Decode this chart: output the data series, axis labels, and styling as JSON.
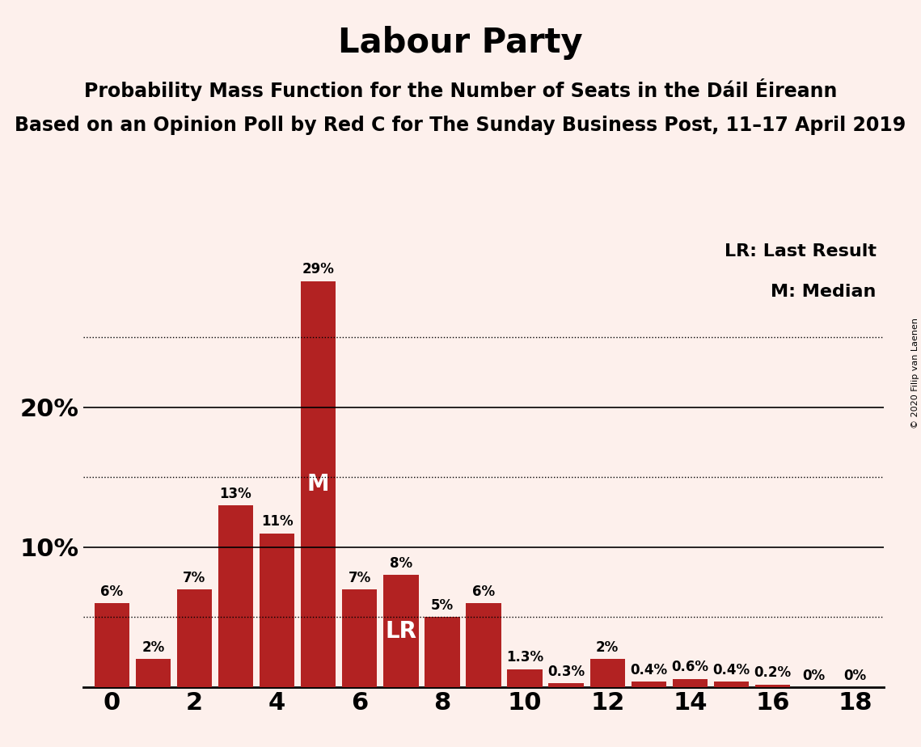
{
  "title": "Labour Party",
  "subtitle1": "Probability Mass Function for the Number of Seats in the Dáil Éireann",
  "subtitle2": "Based on an Opinion Poll by Red C for The Sunday Business Post, 11–17 April 2019",
  "copyright": "© 2020 Filip van Laenen",
  "legend_lr": "LR: Last Result",
  "legend_m": "M: Median",
  "seats": [
    0,
    1,
    2,
    3,
    4,
    5,
    6,
    7,
    8,
    9,
    10,
    11,
    12,
    13,
    14,
    15,
    16,
    17,
    18
  ],
  "probabilities": [
    6,
    2,
    7,
    13,
    11,
    29,
    7,
    8,
    5,
    6,
    1.3,
    0.3,
    2,
    0.4,
    0.6,
    0.4,
    0.2,
    0,
    0
  ],
  "labels": [
    "6%",
    "2%",
    "7%",
    "13%",
    "11%",
    "29%",
    "7%",
    "8%",
    "5%",
    "6%",
    "1.3%",
    "0.3%",
    "2%",
    "0.4%",
    "0.6%",
    "0.4%",
    "0.2%",
    "0%",
    "0%"
  ],
  "bar_color": "#b22222",
  "background_color": "#fdf0ec",
  "median_seat": 5,
  "lr_seat": 7,
  "solid_lines": [
    10,
    20
  ],
  "dotted_lines": [
    5,
    15,
    25
  ],
  "title_fontsize": 30,
  "subtitle_fontsize": 17,
  "bar_label_fontsize": 12,
  "annotation_fontsize": 20,
  "tick_fontsize": 22,
  "legend_fontsize": 16,
  "copyright_fontsize": 8
}
